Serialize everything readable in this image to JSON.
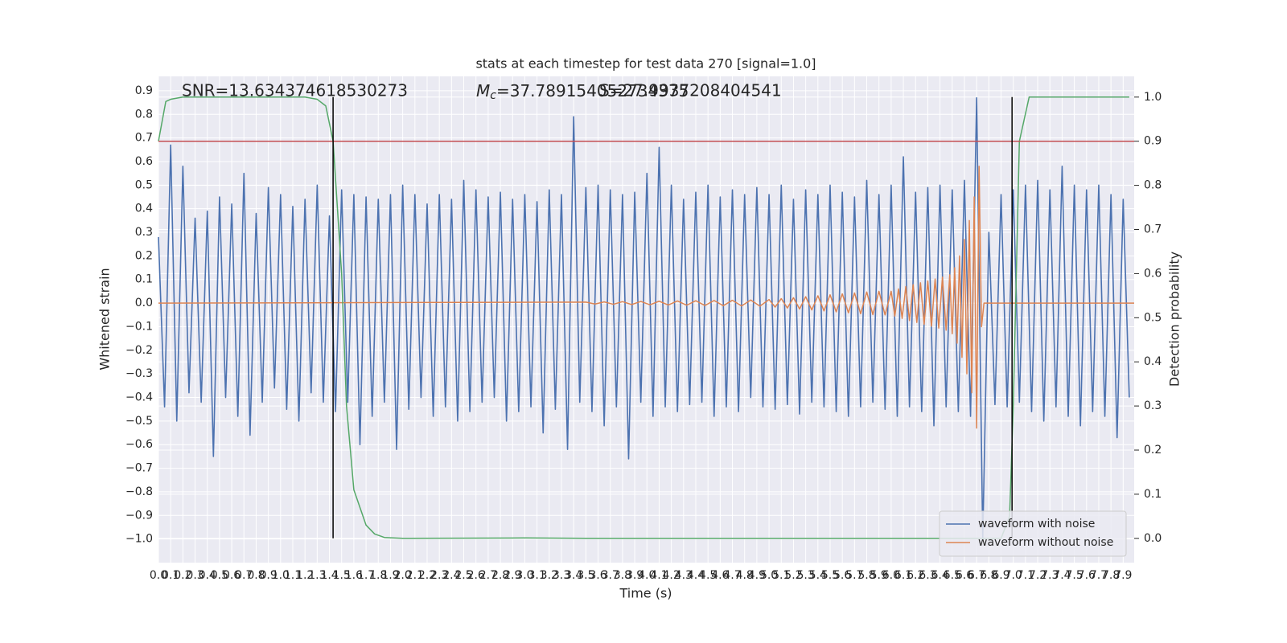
{
  "chart_data": {
    "type": "line",
    "title": "stats at each timestep for test data 270 [signal=1.0]",
    "xlabel": "Time (s)",
    "ylabel": "Whitened strain",
    "y2label": "Detection probability",
    "annotations": [
      {
        "text": "SNR=13.634374618530273"
      },
      {
        "symbol": "M",
        "subscript": "c",
        "text": "=37.789154052734375"
      },
      {
        "text": "S=27.9937208404541"
      }
    ],
    "xlim": [
      0,
      7.99
    ],
    "ylim": [
      -1.1,
      0.961
    ],
    "y2lim": [
      -0.055,
      1.047
    ],
    "grid": true,
    "legend": "lower right",
    "xticks": [
      {
        "value": 0,
        "label": "0.0"
      },
      {
        "value": 0.1,
        "label": "0.1"
      },
      {
        "value": 0.2,
        "label": "0.2"
      },
      {
        "value": 0.3,
        "label": "0.3"
      },
      {
        "value": 0.4,
        "label": "0.4"
      },
      {
        "value": 0.5,
        "label": "0.5"
      },
      {
        "value": 0.6,
        "label": "0.6"
      },
      {
        "value": 0.7,
        "label": "0.7"
      },
      {
        "value": 0.8,
        "label": "0.8"
      },
      {
        "value": 0.9,
        "label": "0.9"
      },
      {
        "value": 1,
        "label": "1.0"
      },
      {
        "value": 1.1,
        "label": "1.1"
      },
      {
        "value": 1.2,
        "label": "1.2"
      },
      {
        "value": 1.3,
        "label": "1.3"
      },
      {
        "value": 1.4,
        "label": "1.4"
      },
      {
        "value": 1.5,
        "label": "1.5"
      },
      {
        "value": 1.6,
        "label": "1.6"
      },
      {
        "value": 1.7,
        "label": "1.7"
      },
      {
        "value": 1.8,
        "label": "1.8"
      },
      {
        "value": 1.9,
        "label": "1.9"
      },
      {
        "value": 2,
        "label": "2.0"
      },
      {
        "value": 2.1,
        "label": "2.1"
      },
      {
        "value": 2.2,
        "label": "2.2"
      },
      {
        "value": 2.3,
        "label": "2.3"
      },
      {
        "value": 2.4,
        "label": "2.4"
      },
      {
        "value": 2.5,
        "label": "2.5"
      },
      {
        "value": 2.6,
        "label": "2.6"
      },
      {
        "value": 2.7,
        "label": "2.7"
      },
      {
        "value": 2.8,
        "label": "2.8"
      },
      {
        "value": 2.9,
        "label": "2.9"
      },
      {
        "value": 3,
        "label": "3.0"
      },
      {
        "value": 3.1,
        "label": "3.1"
      },
      {
        "value": 3.2,
        "label": "3.2"
      },
      {
        "value": 3.3,
        "label": "3.3"
      },
      {
        "value": 3.4,
        "label": "3.4"
      },
      {
        "value": 3.5,
        "label": "3.5"
      },
      {
        "value": 3.6,
        "label": "3.6"
      },
      {
        "value": 3.7,
        "label": "3.7"
      },
      {
        "value": 3.8,
        "label": "3.8"
      },
      {
        "value": 3.9,
        "label": "3.9"
      },
      {
        "value": 4,
        "label": "4.0"
      },
      {
        "value": 4.1,
        "label": "4.1"
      },
      {
        "value": 4.2,
        "label": "4.2"
      },
      {
        "value": 4.3,
        "label": "4.3"
      },
      {
        "value": 4.4,
        "label": "4.4"
      },
      {
        "value": 4.5,
        "label": "4.5"
      },
      {
        "value": 4.6,
        "label": "4.6"
      },
      {
        "value": 4.7,
        "label": "4.7"
      },
      {
        "value": 4.8,
        "label": "4.8"
      },
      {
        "value": 4.9,
        "label": "4.9"
      },
      {
        "value": 5,
        "label": "5.0"
      },
      {
        "value": 5.1,
        "label": "5.1"
      },
      {
        "value": 5.2,
        "label": "5.2"
      },
      {
        "value": 5.3,
        "label": "5.3"
      },
      {
        "value": 5.4,
        "label": "5.4"
      },
      {
        "value": 5.5,
        "label": "5.5"
      },
      {
        "value": 5.6,
        "label": "5.6"
      },
      {
        "value": 5.7,
        "label": "5.7"
      },
      {
        "value": 5.8,
        "label": "5.8"
      },
      {
        "value": 5.9,
        "label": "5.9"
      },
      {
        "value": 6,
        "label": "6.0"
      },
      {
        "value": 6.1,
        "label": "6.1"
      },
      {
        "value": 6.2,
        "label": "6.2"
      },
      {
        "value": 6.3,
        "label": "6.3"
      },
      {
        "value": 6.4,
        "label": "6.4"
      },
      {
        "value": 6.5,
        "label": "6.5"
      },
      {
        "value": 6.6,
        "label": "6.6"
      },
      {
        "value": 6.7,
        "label": "6.7"
      },
      {
        "value": 6.8,
        "label": "6.8"
      },
      {
        "value": 6.9,
        "label": "6.9"
      },
      {
        "value": 7,
        "label": "7.0"
      },
      {
        "value": 7.1,
        "label": "7.1"
      },
      {
        "value": 7.2,
        "label": "7.2"
      },
      {
        "value": 7.3,
        "label": "7.3"
      },
      {
        "value": 7.4,
        "label": "7.4"
      },
      {
        "value": 7.5,
        "label": "7.5"
      },
      {
        "value": 7.6,
        "label": "7.6"
      },
      {
        "value": 7.7,
        "label": "7.7"
      },
      {
        "value": 7.8,
        "label": "7.8"
      },
      {
        "value": 7.9,
        "label": "7.9"
      }
    ],
    "yticks": [
      {
        "value": -1,
        "label": "−1.0"
      },
      {
        "value": -0.9,
        "label": "−0.9"
      },
      {
        "value": -0.8,
        "label": "−0.8"
      },
      {
        "value": -0.7,
        "label": "−0.7"
      },
      {
        "value": -0.6,
        "label": "−0.6"
      },
      {
        "value": -0.5,
        "label": "−0.5"
      },
      {
        "value": -0.4,
        "label": "−0.4"
      },
      {
        "value": -0.3,
        "label": "−0.3"
      },
      {
        "value": -0.2,
        "label": "−0.2"
      },
      {
        "value": -0.1,
        "label": "−0.1"
      },
      {
        "value": 0,
        "label": "0.0"
      },
      {
        "value": 0.1,
        "label": "0.1"
      },
      {
        "value": 0.2,
        "label": "0.2"
      },
      {
        "value": 0.3,
        "label": "0.3"
      },
      {
        "value": 0.4,
        "label": "0.4"
      },
      {
        "value": 0.5,
        "label": "0.5"
      },
      {
        "value": 0.6,
        "label": "0.6"
      },
      {
        "value": 0.7,
        "label": "0.7"
      },
      {
        "value": 0.8,
        "label": "0.8"
      },
      {
        "value": 0.9,
        "label": "0.9"
      }
    ],
    "y2ticks": [
      {
        "value": 0,
        "label": "0.0"
      },
      {
        "value": 0.1,
        "label": "0.1"
      },
      {
        "value": 0.2,
        "label": "0.2"
      },
      {
        "value": 0.3,
        "label": "0.3"
      },
      {
        "value": 0.4,
        "label": "0.4"
      },
      {
        "value": 0.5,
        "label": "0.5"
      },
      {
        "value": 0.6,
        "label": "0.6"
      },
      {
        "value": 0.7,
        "label": "0.7"
      },
      {
        "value": 0.8,
        "label": "0.8"
      },
      {
        "value": 0.9,
        "label": "0.9"
      },
      {
        "value": 1,
        "label": "1.0"
      }
    ],
    "series": [
      {
        "name": "waveform with noise",
        "color": "#4c72b0",
        "x": [
          0,
          0.05,
          0.1,
          0.15,
          0.2,
          0.25,
          0.3,
          0.35,
          0.4,
          0.45,
          0.5,
          0.55,
          0.6,
          0.65,
          0.7,
          0.75,
          0.8,
          0.85,
          0.9,
          0.95,
          1,
          1.05,
          1.1,
          1.15,
          1.2,
          1.25,
          1.3,
          1.35,
          1.4,
          1.45,
          1.5,
          1.55,
          1.6,
          1.65,
          1.7,
          1.75,
          1.8,
          1.85,
          1.9,
          1.95,
          2,
          2.05,
          2.1,
          2.15,
          2.2,
          2.25,
          2.3,
          2.35,
          2.4,
          2.45,
          2.5,
          2.55,
          2.6,
          2.65,
          2.7,
          2.75,
          2.8,
          2.85,
          2.9,
          2.95,
          3,
          3.05,
          3.1,
          3.15,
          3.2,
          3.25,
          3.3,
          3.35,
          3.4,
          3.45,
          3.5,
          3.55,
          3.6,
          3.65,
          3.7,
          3.75,
          3.8,
          3.85,
          3.9,
          3.95,
          4,
          4.05,
          4.1,
          4.15,
          4.2,
          4.25,
          4.3,
          4.35,
          4.4,
          4.45,
          4.5,
          4.55,
          4.6,
          4.65,
          4.7,
          4.75,
          4.8,
          4.85,
          4.9,
          4.95,
          5,
          5.05,
          5.1,
          5.15,
          5.2,
          5.25,
          5.3,
          5.35,
          5.4,
          5.45,
          5.5,
          5.55,
          5.6,
          5.65,
          5.7,
          5.75,
          5.8,
          5.85,
          5.9,
          5.95,
          6,
          6.05,
          6.1,
          6.15,
          6.2,
          6.25,
          6.3,
          6.35,
          6.4,
          6.45,
          6.5,
          6.55,
          6.6,
          6.65,
          6.7,
          6.75,
          6.8,
          6.85,
          6.9,
          6.95,
          7,
          7.05,
          7.1,
          7.15,
          7.2,
          7.25,
          7.3,
          7.35,
          7.4,
          7.45,
          7.5,
          7.55,
          7.6,
          7.65,
          7.7,
          7.75,
          7.8,
          7.85,
          7.9,
          7.95
        ],
        "values": [
          0.28,
          -0.44,
          0.67,
          -0.5,
          0.58,
          -0.38,
          0.36,
          -0.42,
          0.39,
          -0.65,
          0.45,
          -0.4,
          0.42,
          -0.48,
          0.55,
          -0.56,
          0.38,
          -0.42,
          0.49,
          -0.36,
          0.46,
          -0.45,
          0.41,
          -0.5,
          0.44,
          -0.38,
          0.5,
          -0.42,
          0.37,
          -0.46,
          0.48,
          -0.42,
          0.46,
          -0.6,
          0.45,
          -0.48,
          0.44,
          -0.42,
          0.46,
          -0.62,
          0.5,
          -0.45,
          0.46,
          -0.4,
          0.42,
          -0.48,
          0.46,
          -0.44,
          0.44,
          -0.5,
          0.52,
          -0.46,
          0.48,
          -0.42,
          0.45,
          -0.4,
          0.47,
          -0.5,
          0.44,
          -0.46,
          0.46,
          -0.44,
          0.43,
          -0.55,
          0.48,
          -0.45,
          0.46,
          -0.62,
          0.79,
          -0.42,
          0.49,
          -0.46,
          0.5,
          -0.52,
          0.48,
          -0.44,
          0.46,
          -0.66,
          0.47,
          -0.42,
          0.55,
          -0.48,
          0.66,
          -0.44,
          0.5,
          -0.46,
          0.44,
          -0.43,
          0.47,
          -0.42,
          0.5,
          -0.48,
          0.45,
          -0.44,
          0.48,
          -0.46,
          0.46,
          -0.4,
          0.49,
          -0.44,
          0.46,
          -0.45,
          0.5,
          -0.43,
          0.44,
          -0.47,
          0.48,
          -0.42,
          0.46,
          -0.44,
          0.5,
          -0.46,
          0.47,
          -0.48,
          0.45,
          -0.44,
          0.52,
          -0.42,
          0.46,
          -0.45,
          0.5,
          -0.48,
          0.62,
          -0.44,
          0.47,
          -0.46,
          0.49,
          -0.52,
          0.5,
          -0.44,
          0.48,
          -0.46,
          0.52,
          -0.48,
          0.87,
          -1,
          0.3,
          -0.43,
          0.46,
          -0.44,
          0.48,
          -0.42,
          0.5,
          -0.46,
          0.52,
          -0.5,
          0.48,
          -0.44,
          0.58,
          -0.48,
          0.5,
          -0.52,
          0.48,
          -0.46,
          0.5,
          -0.48,
          0.46,
          -0.57,
          0.44,
          -0.4
        ]
      },
      {
        "name": "waveform without noise",
        "color": "#dd8452",
        "x": [
          0,
          3.5,
          3.575,
          3.65,
          3.725,
          3.8,
          3.875,
          3.95,
          4.025,
          4.1,
          4.175,
          4.25,
          4.325,
          4.4,
          4.475,
          4.55,
          4.625,
          4.7,
          4.775,
          4.85,
          4.925,
          5,
          5.05,
          5.1,
          5.15,
          5.2,
          5.25,
          5.3,
          5.35,
          5.4,
          5.45,
          5.5,
          5.55,
          5.6,
          5.65,
          5.7,
          5.75,
          5.8,
          5.85,
          5.9,
          5.95,
          6,
          6.03,
          6.06,
          6.09,
          6.12,
          6.15,
          6.18,
          6.21,
          6.24,
          6.27,
          6.3,
          6.33,
          6.36,
          6.39,
          6.42,
          6.45,
          6.48,
          6.5,
          6.52,
          6.54,
          6.56,
          6.58,
          6.6,
          6.62,
          6.64,
          6.66,
          6.68,
          6.7,
          6.72,
          6.74,
          6.76,
          7.99
        ],
        "values": [
          0,
          0.004,
          -0.004,
          0.005,
          -0.005,
          0.006,
          -0.006,
          0.007,
          -0.007,
          0.008,
          -0.008,
          0.009,
          -0.009,
          0.01,
          -0.01,
          0.011,
          -0.011,
          0.012,
          -0.012,
          0.013,
          -0.013,
          0.015,
          -0.017,
          0.019,
          -0.021,
          0.023,
          -0.025,
          0.027,
          -0.029,
          0.031,
          -0.033,
          0.035,
          -0.037,
          0.039,
          -0.041,
          0.043,
          -0.045,
          0.047,
          -0.049,
          0.05,
          -0.05,
          0.05,
          -0.055,
          0.06,
          -0.065,
          0.07,
          -0.074,
          0.078,
          -0.082,
          0.086,
          -0.09,
          0.094,
          -0.098,
          0.102,
          -0.106,
          0.11,
          -0.115,
          0.12,
          -0.13,
          0.15,
          -0.17,
          0.2,
          -0.23,
          0.27,
          -0.3,
          0.35,
          -0.38,
          0.45,
          -0.53,
          0.58,
          -0.1,
          0,
          0
        ]
      },
      {
        "color": "#55a868",
        "axis": "y2",
        "x": [
          0,
          0.06,
          0.1,
          0.2,
          1.2,
          1.3,
          1.37,
          1.43,
          1.5,
          1.54,
          1.6,
          1.7,
          1.77,
          1.85,
          2,
          3,
          3.5,
          6.9,
          6.97,
          7,
          7.05,
          7.13,
          7.95
        ],
        "values": [
          0.9,
          0.99,
          0.995,
          1,
          1,
          0.995,
          0.98,
          0.9,
          0.6,
          0.3,
          0.11,
          0.03,
          0.01,
          0.002,
          0,
          0.001,
          0,
          0,
          0.05,
          0.3,
          0.9,
          1,
          1
        ]
      }
    ],
    "hline": {
      "y": 0.9,
      "axis": "y2",
      "color": "#c44e52"
    },
    "vlines": {
      "x": [
        1.43,
        6.99
      ],
      "ymin": 0,
      "ymax": 1,
      "axis": "y2",
      "color": "#000000"
    }
  }
}
